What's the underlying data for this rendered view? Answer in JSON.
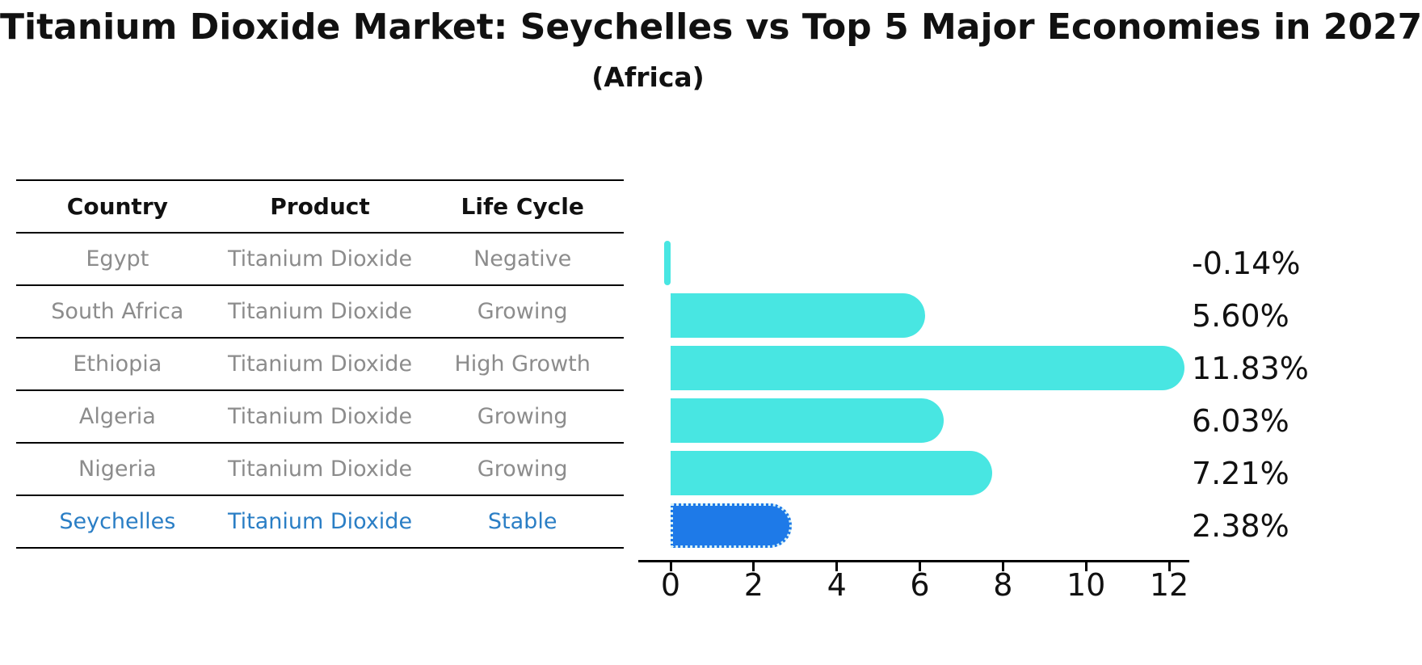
{
  "title": "Titanium Dioxide Market: Seychelles vs Top 5 Major Economies in 2027",
  "subtitle": "(Africa)",
  "table": {
    "headers": [
      "Country",
      "Product",
      "Life Cycle"
    ],
    "rows": [
      {
        "country": "Egypt",
        "product": "Titanium Dioxide",
        "life_cycle": "Negative",
        "highlight": false
      },
      {
        "country": "South Africa",
        "product": "Titanium Dioxide",
        "life_cycle": "Growing",
        "highlight": false
      },
      {
        "country": "Ethiopia",
        "product": "Titanium Dioxide",
        "life_cycle": "High Growth",
        "highlight": false
      },
      {
        "country": "Algeria",
        "product": "Titanium Dioxide",
        "life_cycle": "Growing",
        "highlight": false
      },
      {
        "country": "Nigeria",
        "product": "Titanium Dioxide",
        "life_cycle": "Growing",
        "highlight": false
      },
      {
        "country": "Seychelles",
        "product": "Titanium Dioxide",
        "life_cycle": "Stable",
        "highlight": true
      }
    ]
  },
  "chart_data": {
    "type": "bar",
    "orientation": "horizontal",
    "title": "Titanium Dioxide Market: Seychelles vs Top 5 Major Economies in 2027",
    "subtitle": "(Africa)",
    "categories": [
      "Egypt",
      "South Africa",
      "Ethiopia",
      "Algeria",
      "Nigeria",
      "Seychelles"
    ],
    "values": [
      -0.14,
      5.6,
      11.83,
      6.03,
      7.21,
      2.38
    ],
    "value_labels": [
      "-0.14%",
      "5.60%",
      "11.83%",
      "6.03%",
      "7.21%",
      "2.38%"
    ],
    "unit": "percent",
    "x_ticks": [
      0,
      2,
      4,
      6,
      8,
      10,
      12
    ],
    "xlim": [
      -0.8,
      12.5
    ],
    "xlabel": "",
    "ylabel": "",
    "grid": false,
    "legend": "none",
    "bar_color": "#48e6e2",
    "highlight_color": "#1e7ae8",
    "highlight_index": 5,
    "highlight_border": "dotted",
    "axis_color": "#000000",
    "label_color": "#111111"
  }
}
